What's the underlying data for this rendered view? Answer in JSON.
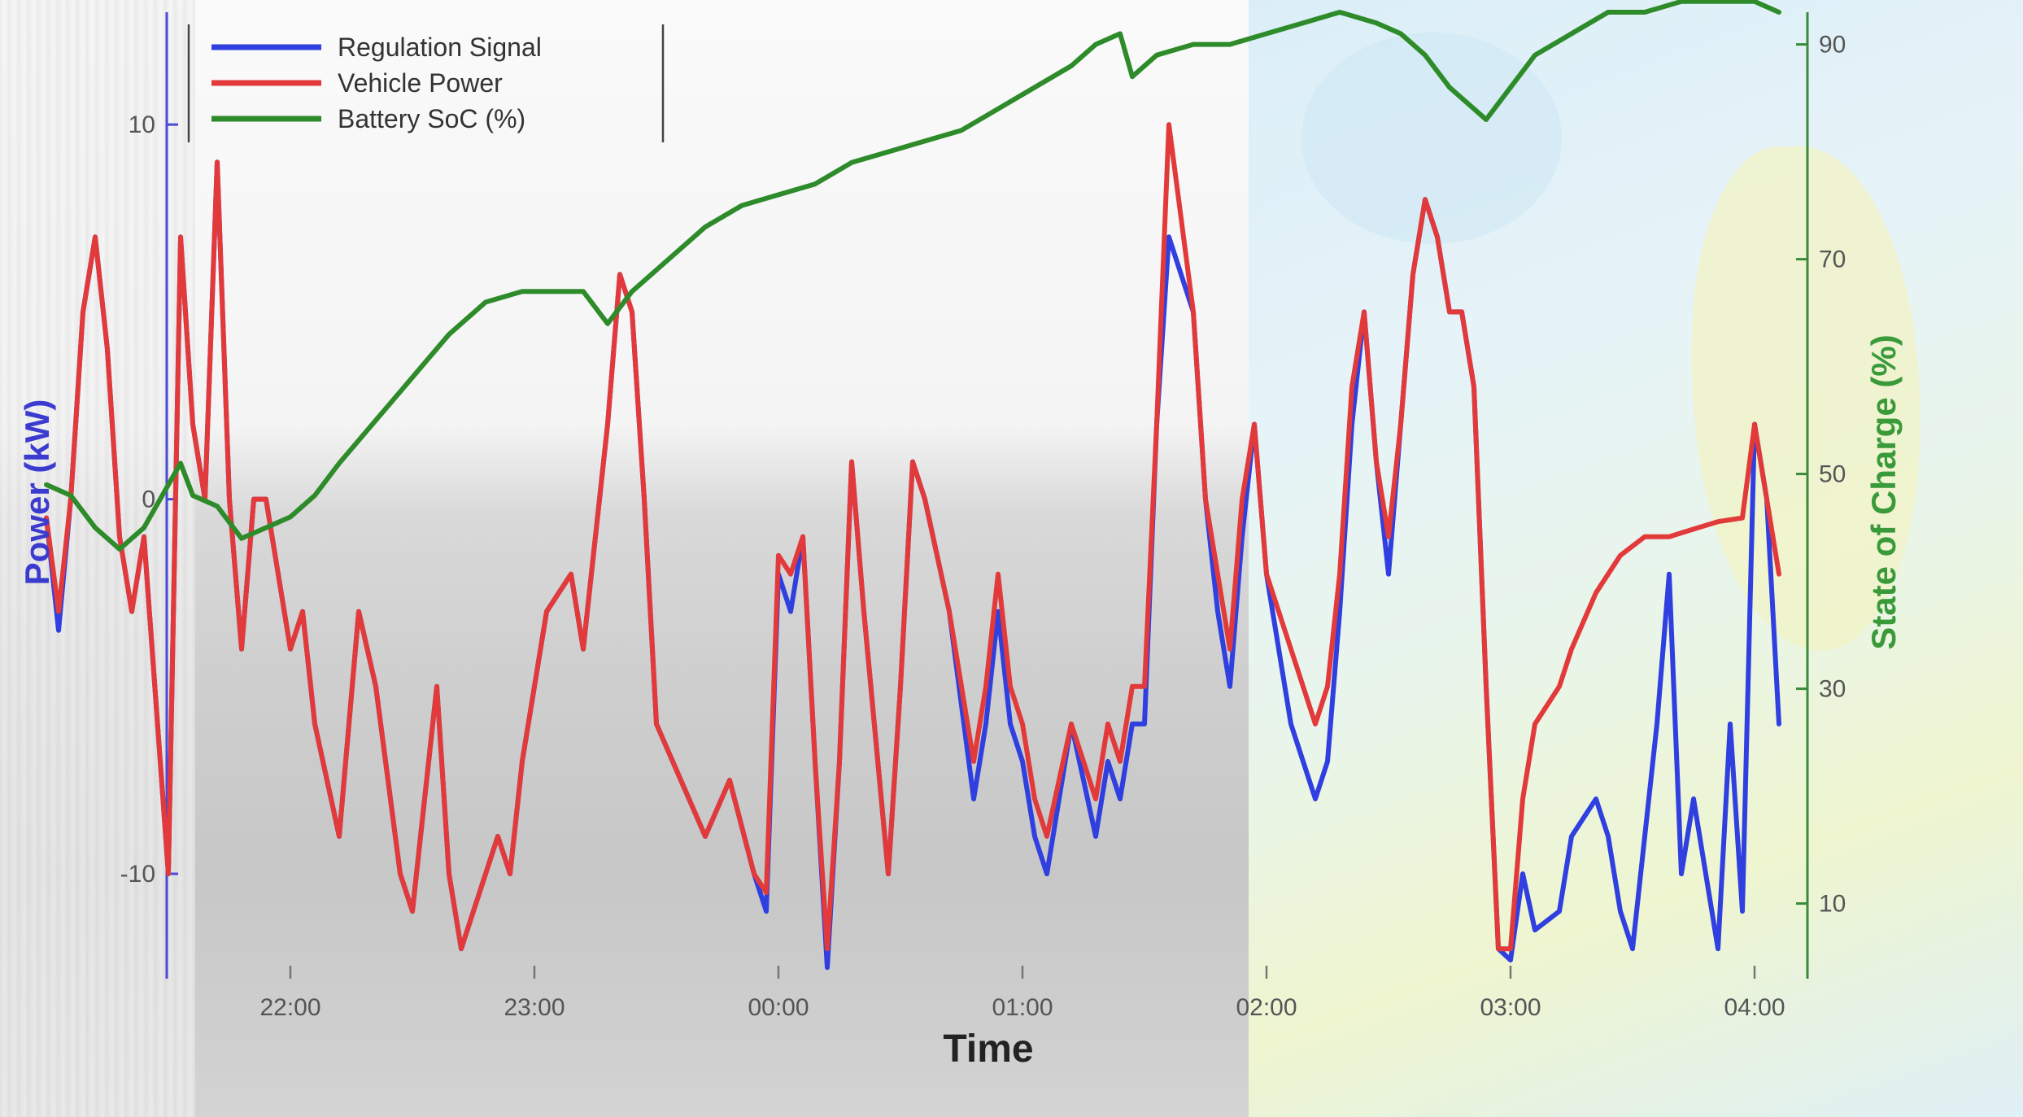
{
  "chart_data": {
    "type": "line",
    "title": "",
    "xlabel": "Time",
    "ylabel_left": "Power (kW)",
    "ylabel_right": "State of Charge (%)",
    "x_unit": "hours since 21:00",
    "x_ticks": [
      {
        "label": "22:00",
        "value": 1
      },
      {
        "label": "23:00",
        "value": 2
      },
      {
        "label": "00:00",
        "value": 3
      },
      {
        "label": "01:00",
        "value": 4
      },
      {
        "label": "02:00",
        "value": 5
      },
      {
        "label": "03:00",
        "value": 6
      },
      {
        "label": "04:00",
        "value": 7
      }
    ],
    "xlim": [
      0,
      7
    ],
    "ylim_left": [
      -12.8,
      13
    ],
    "ylim_right": [
      3,
      93
    ],
    "left_ticks": [
      {
        "label": "10",
        "value": 10
      },
      {
        "label": "0",
        "value": 0
      },
      {
        "label": "-10",
        "value": -10
      }
    ],
    "right_ticks": [
      {
        "label": "90",
        "value": 90
      },
      {
        "label": "70",
        "value": 70
      },
      {
        "label": "50",
        "value": 50
      },
      {
        "label": "30",
        "value": 30
      },
      {
        "label": "10",
        "value": 10
      }
    ],
    "grid": false,
    "legend_position": "top-left",
    "series": [
      {
        "name": "Regulation Signal",
        "axis": "left",
        "color": "#2f3fe0",
        "points": [
          [
            0,
            -0.5
          ],
          [
            0.05,
            -3.5
          ],
          [
            0.1,
            0
          ],
          [
            0.15,
            5
          ],
          [
            0.2,
            7
          ],
          [
            0.25,
            4
          ],
          [
            0.3,
            -1
          ],
          [
            0.35,
            -3
          ],
          [
            0.4,
            -1
          ],
          [
            0.5,
            -10
          ],
          [
            0.55,
            7
          ],
          [
            0.6,
            2
          ],
          [
            0.65,
            0
          ],
          [
            0.7,
            9
          ],
          [
            0.75,
            0
          ],
          [
            0.8,
            -4
          ],
          [
            0.85,
            0
          ],
          [
            0.9,
            0
          ],
          [
            0.95,
            -2
          ],
          [
            1,
            -4
          ],
          [
            1.05,
            -3
          ],
          [
            1.1,
            -6
          ],
          [
            1.2,
            -9
          ],
          [
            1.28,
            -3
          ],
          [
            1.35,
            -5
          ],
          [
            1.45,
            -10
          ],
          [
            1.5,
            -11
          ],
          [
            1.55,
            -8
          ],
          [
            1.6,
            -5
          ],
          [
            1.65,
            -10
          ],
          [
            1.7,
            -12
          ],
          [
            1.8,
            -10
          ],
          [
            1.85,
            -9
          ],
          [
            1.9,
            -10
          ],
          [
            1.95,
            -7
          ],
          [
            2,
            -5
          ],
          [
            2.05,
            -3
          ],
          [
            2.15,
            -2
          ],
          [
            2.2,
            -4
          ],
          [
            2.3,
            2
          ],
          [
            2.35,
            6
          ],
          [
            2.4,
            5
          ],
          [
            2.45,
            0
          ],
          [
            2.5,
            -6
          ],
          [
            2.6,
            -7.5
          ],
          [
            2.7,
            -9
          ],
          [
            2.8,
            -7.5
          ],
          [
            2.9,
            -10
          ],
          [
            2.95,
            -11
          ],
          [
            3,
            -2
          ],
          [
            3.05,
            -3
          ],
          [
            3.1,
            -1
          ],
          [
            3.15,
            -7
          ],
          [
            3.2,
            -12.5
          ],
          [
            3.25,
            -7
          ],
          [
            3.3,
            1
          ],
          [
            3.35,
            -3
          ],
          [
            3.45,
            -10
          ],
          [
            3.5,
            -5
          ],
          [
            3.55,
            1
          ],
          [
            3.6,
            0
          ],
          [
            3.7,
            -3
          ],
          [
            3.8,
            -8
          ],
          [
            3.85,
            -6
          ],
          [
            3.9,
            -3
          ],
          [
            3.95,
            -6
          ],
          [
            4,
            -7
          ],
          [
            4.05,
            -9
          ],
          [
            4.1,
            -10
          ],
          [
            4.2,
            -6
          ],
          [
            4.3,
            -9
          ],
          [
            4.35,
            -7
          ],
          [
            4.4,
            -8
          ],
          [
            4.45,
            -6
          ],
          [
            4.5,
            -6
          ],
          [
            4.55,
            2
          ],
          [
            4.6,
            7
          ],
          [
            4.7,
            5
          ],
          [
            4.75,
            0
          ],
          [
            4.8,
            -3
          ],
          [
            4.85,
            -5
          ],
          [
            4.9,
            -1
          ],
          [
            4.95,
            2
          ],
          [
            5,
            -2
          ],
          [
            5.05,
            -4
          ],
          [
            5.1,
            -6
          ],
          [
            5.15,
            -7
          ],
          [
            5.2,
            -8
          ],
          [
            5.25,
            -7
          ],
          [
            5.3,
            -3
          ],
          [
            5.35,
            2
          ],
          [
            5.4,
            5
          ],
          [
            5.45,
            1
          ],
          [
            5.5,
            -2
          ],
          [
            5.55,
            2
          ],
          [
            5.6,
            6
          ],
          [
            5.65,
            8
          ],
          [
            5.7,
            7
          ],
          [
            5.75,
            5
          ],
          [
            5.8,
            5
          ],
          [
            5.85,
            3
          ],
          [
            5.9,
            -5
          ],
          [
            5.95,
            -12
          ],
          [
            6,
            -12.3
          ],
          [
            6.05,
            -10
          ],
          [
            6.1,
            -11.5
          ],
          [
            6.2,
            -11
          ],
          [
            6.25,
            -9
          ],
          [
            6.35,
            -8
          ],
          [
            6.4,
            -9
          ],
          [
            6.45,
            -11
          ],
          [
            6.5,
            -12
          ],
          [
            6.6,
            -6
          ],
          [
            6.65,
            -2
          ],
          [
            6.7,
            -10
          ],
          [
            6.75,
            -8
          ],
          [
            6.8,
            -10
          ],
          [
            6.85,
            -12
          ],
          [
            6.9,
            -6
          ],
          [
            6.95,
            -11
          ],
          [
            7,
            2
          ],
          [
            7.05,
            0
          ],
          [
            7.1,
            -6
          ]
        ]
      },
      {
        "name": "Vehicle Power",
        "axis": "left",
        "color": "#e23a3a",
        "points": [
          [
            0,
            -0.5
          ],
          [
            0.05,
            -3
          ],
          [
            0.1,
            0
          ],
          [
            0.15,
            5
          ],
          [
            0.2,
            7
          ],
          [
            0.25,
            4
          ],
          [
            0.3,
            -1
          ],
          [
            0.35,
            -3
          ],
          [
            0.4,
            -1
          ],
          [
            0.5,
            -10
          ],
          [
            0.55,
            7
          ],
          [
            0.6,
            2
          ],
          [
            0.65,
            0
          ],
          [
            0.7,
            9
          ],
          [
            0.75,
            0
          ],
          [
            0.8,
            -4
          ],
          [
            0.85,
            0
          ],
          [
            0.9,
            0
          ],
          [
            0.95,
            -2
          ],
          [
            1,
            -4
          ],
          [
            1.05,
            -3
          ],
          [
            1.1,
            -6
          ],
          [
            1.2,
            -9
          ],
          [
            1.28,
            -3
          ],
          [
            1.35,
            -5
          ],
          [
            1.45,
            -10
          ],
          [
            1.5,
            -11
          ],
          [
            1.55,
            -8
          ],
          [
            1.6,
            -5
          ],
          [
            1.65,
            -10
          ],
          [
            1.7,
            -12
          ],
          [
            1.8,
            -10
          ],
          [
            1.85,
            -9
          ],
          [
            1.9,
            -10
          ],
          [
            1.95,
            -7
          ],
          [
            2,
            -5
          ],
          [
            2.05,
            -3
          ],
          [
            2.15,
            -2
          ],
          [
            2.2,
            -4
          ],
          [
            2.3,
            2
          ],
          [
            2.35,
            6
          ],
          [
            2.4,
            5
          ],
          [
            2.45,
            0
          ],
          [
            2.5,
            -6
          ],
          [
            2.6,
            -7.5
          ],
          [
            2.7,
            -9
          ],
          [
            2.8,
            -7.5
          ],
          [
            2.9,
            -10
          ],
          [
            2.95,
            -10.5
          ],
          [
            3,
            -1.5
          ],
          [
            3.05,
            -2
          ],
          [
            3.1,
            -1
          ],
          [
            3.15,
            -7
          ],
          [
            3.2,
            -12
          ],
          [
            3.25,
            -7
          ],
          [
            3.3,
            1
          ],
          [
            3.35,
            -3
          ],
          [
            3.45,
            -10
          ],
          [
            3.5,
            -5
          ],
          [
            3.55,
            1
          ],
          [
            3.6,
            0
          ],
          [
            3.7,
            -3
          ],
          [
            3.8,
            -7
          ],
          [
            3.85,
            -5
          ],
          [
            3.9,
            -2
          ],
          [
            3.95,
            -5
          ],
          [
            4,
            -6
          ],
          [
            4.05,
            -8
          ],
          [
            4.1,
            -9
          ],
          [
            4.2,
            -6
          ],
          [
            4.3,
            -8
          ],
          [
            4.35,
            -6
          ],
          [
            4.4,
            -7
          ],
          [
            4.45,
            -5
          ],
          [
            4.5,
            -5
          ],
          [
            4.55,
            2
          ],
          [
            4.6,
            10
          ],
          [
            4.7,
            5
          ],
          [
            4.75,
            0
          ],
          [
            4.8,
            -2
          ],
          [
            4.85,
            -4
          ],
          [
            4.9,
            0
          ],
          [
            4.95,
            2
          ],
          [
            5,
            -2
          ],
          [
            5.05,
            -3
          ],
          [
            5.1,
            -4
          ],
          [
            5.15,
            -5
          ],
          [
            5.2,
            -6
          ],
          [
            5.25,
            -5
          ],
          [
            5.3,
            -2
          ],
          [
            5.35,
            3
          ],
          [
            5.4,
            5
          ],
          [
            5.45,
            1
          ],
          [
            5.5,
            -1
          ],
          [
            5.55,
            2
          ],
          [
            5.6,
            6
          ],
          [
            5.65,
            8
          ],
          [
            5.7,
            7
          ],
          [
            5.75,
            5
          ],
          [
            5.8,
            5
          ],
          [
            5.85,
            3
          ],
          [
            5.9,
            -5
          ],
          [
            5.95,
            -12
          ],
          [
            6,
            -12
          ],
          [
            6.05,
            -8
          ],
          [
            6.1,
            -6
          ],
          [
            6.2,
            -5
          ],
          [
            6.25,
            -4
          ],
          [
            6.35,
            -2.5
          ],
          [
            6.45,
            -1.5
          ],
          [
            6.55,
            -1
          ],
          [
            6.65,
            -1
          ],
          [
            6.75,
            -0.8
          ],
          [
            6.85,
            -0.6
          ],
          [
            6.95,
            -0.5
          ],
          [
            7,
            2
          ],
          [
            7.05,
            0
          ],
          [
            7.1,
            -2
          ]
        ]
      },
      {
        "name": "Battery SoC (%)",
        "axis": "right",
        "color": "#2e8b2a",
        "points": [
          [
            0,
            49
          ],
          [
            0.1,
            48
          ],
          [
            0.2,
            45
          ],
          [
            0.3,
            43
          ],
          [
            0.35,
            44
          ],
          [
            0.4,
            45
          ],
          [
            0.55,
            51
          ],
          [
            0.6,
            48
          ],
          [
            0.7,
            47
          ],
          [
            0.8,
            44
          ],
          [
            0.9,
            45
          ],
          [
            1,
            46
          ],
          [
            1.1,
            48
          ],
          [
            1.2,
            51
          ],
          [
            1.35,
            55
          ],
          [
            1.5,
            59
          ],
          [
            1.65,
            63
          ],
          [
            1.8,
            66
          ],
          [
            1.95,
            67
          ],
          [
            2.1,
            67
          ],
          [
            2.2,
            67
          ],
          [
            2.3,
            64
          ],
          [
            2.4,
            67
          ],
          [
            2.55,
            70
          ],
          [
            2.7,
            73
          ],
          [
            2.85,
            75
          ],
          [
            3,
            76
          ],
          [
            3.15,
            77
          ],
          [
            3.3,
            79
          ],
          [
            3.45,
            80
          ],
          [
            3.6,
            81
          ],
          [
            3.75,
            82
          ],
          [
            3.9,
            84
          ],
          [
            4.05,
            86
          ],
          [
            4.2,
            88
          ],
          [
            4.3,
            90
          ],
          [
            4.4,
            91
          ],
          [
            4.45,
            87
          ],
          [
            4.55,
            89
          ],
          [
            4.7,
            90
          ],
          [
            4.85,
            90
          ],
          [
            5,
            91
          ],
          [
            5.15,
            92
          ],
          [
            5.3,
            93
          ],
          [
            5.45,
            92
          ],
          [
            5.55,
            91
          ],
          [
            5.65,
            89
          ],
          [
            5.75,
            86
          ],
          [
            5.85,
            84
          ],
          [
            5.9,
            83
          ],
          [
            6,
            86
          ],
          [
            6.1,
            89
          ],
          [
            6.25,
            91
          ],
          [
            6.4,
            93
          ],
          [
            6.55,
            93
          ],
          [
            6.7,
            94
          ],
          [
            6.85,
            94
          ],
          [
            7,
            94
          ],
          [
            7.1,
            93
          ]
        ]
      }
    ]
  }
}
